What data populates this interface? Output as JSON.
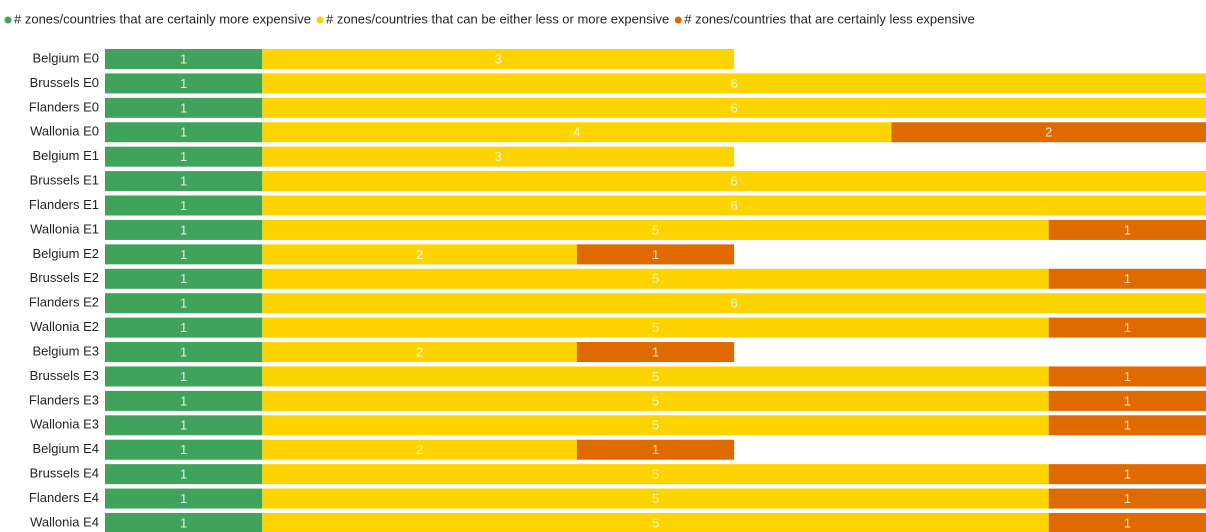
{
  "chart_data": {
    "type": "stacked-bar-horizontal",
    "categories": [
      "Belgium E0",
      "Brussels E0",
      "Flanders E0",
      "Wallonia E0",
      "Belgium E1",
      "Brussels E1",
      "Flanders E1",
      "Wallonia E1",
      "Belgium E2",
      "Brussels E2",
      "Flanders E2",
      "Wallonia E2",
      "Belgium E3",
      "Brussels E3",
      "Flanders E3",
      "Wallonia E3",
      "Belgium E4",
      "Brussels E4",
      "Flanders E4",
      "Wallonia E4"
    ],
    "series": [
      {
        "name": "# zones/countries that are certainly more expensive",
        "color": "#3fa35b",
        "values": [
          1,
          1,
          1,
          1,
          1,
          1,
          1,
          1,
          1,
          1,
          1,
          1,
          1,
          1,
          1,
          1,
          1,
          1,
          1,
          1
        ]
      },
      {
        "name": "# zones/countries that can be either less or more expensive",
        "color": "#fdd400",
        "values": [
          3,
          6,
          6,
          4,
          3,
          6,
          6,
          5,
          2,
          5,
          6,
          5,
          2,
          5,
          5,
          5,
          2,
          5,
          5,
          5
        ]
      },
      {
        "name": "# zones/countries that are certainly less expensive",
        "color": "#de6a00",
        "values": [
          null,
          null,
          null,
          2,
          null,
          null,
          null,
          1,
          1,
          1,
          null,
          1,
          1,
          1,
          1,
          1,
          1,
          1,
          1,
          1
        ]
      }
    ],
    "xlim": [
      0,
      7
    ],
    "legend": "top-left"
  }
}
